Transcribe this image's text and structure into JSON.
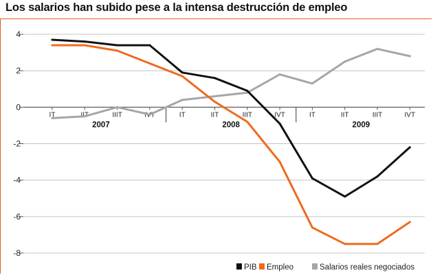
{
  "chart_data": {
    "type": "line",
    "title": "Los salarios han subido pese a la intensa destrucción de empleo",
    "categories": [
      "IT",
      "IIT",
      "IIIT",
      "IVT",
      "IT",
      "IIT",
      "IIIT",
      "IVT",
      "IT",
      "IIT",
      "IIIT",
      "IVT"
    ],
    "years": [
      "2007",
      "2008",
      "2009"
    ],
    "ylim": [
      -8,
      4
    ],
    "yticks": [
      "4",
      "2",
      "0",
      "-2",
      "-4",
      "-6",
      "-8"
    ],
    "series": [
      {
        "name": "PIB",
        "color": "#111111",
        "values": [
          3.7,
          3.6,
          3.4,
          3.4,
          1.9,
          1.6,
          0.9,
          -0.9,
          -3.9,
          -4.9,
          -3.8,
          -2.2
        ]
      },
      {
        "name": "Empleo",
        "color": "#f06a1e",
        "values": [
          3.4,
          3.4,
          3.1,
          2.4,
          1.7,
          0.3,
          -0.8,
          -3.0,
          -6.6,
          -7.5,
          -7.5,
          -6.3
        ]
      },
      {
        "name": "Salarios reales negociados",
        "color": "#a6a6a6",
        "values": [
          -0.6,
          -0.5,
          0.0,
          -0.4,
          0.4,
          0.6,
          0.8,
          1.8,
          1.3,
          2.5,
          3.2,
          2.8
        ]
      }
    ]
  }
}
